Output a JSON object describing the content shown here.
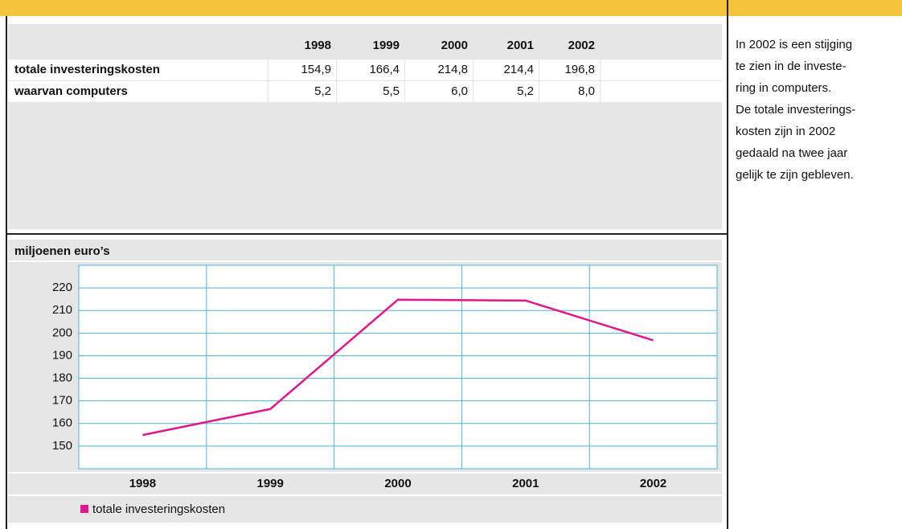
{
  "table": {
    "columns": [
      "1998",
      "1999",
      "2000",
      "2001",
      "2002"
    ],
    "rows": [
      {
        "label": "totale investeringskosten",
        "values": [
          "154,9",
          "166,4",
          "214,8",
          "214,4",
          "196,8"
        ]
      },
      {
        "label": "waarvan computers",
        "values": [
          "5,2",
          "5,5",
          "6,0",
          "5,2",
          "8,0"
        ]
      }
    ]
  },
  "note": [
    "In 2002 is een stijging",
    "te zien in de investe-",
    "ring in computers.",
    "De totale investerings-",
    "kosten zijn in 2002",
    "gedaald na twee jaar",
    "gelijk te zijn gebleven."
  ],
  "chart_data": {
    "type": "line",
    "y_label": "miljoenen euro’s",
    "categories": [
      "1998",
      "1999",
      "2000",
      "2001",
      "2002"
    ],
    "series": [
      {
        "name": "totale investeringskosten",
        "color": "#e2168c",
        "values": [
          154.9,
          166.4,
          214.8,
          214.4,
          196.8
        ]
      }
    ],
    "ylim": [
      140,
      230
    ],
    "yticks": [
      150,
      160,
      170,
      180,
      190,
      200,
      210,
      220
    ],
    "grid": true
  }
}
